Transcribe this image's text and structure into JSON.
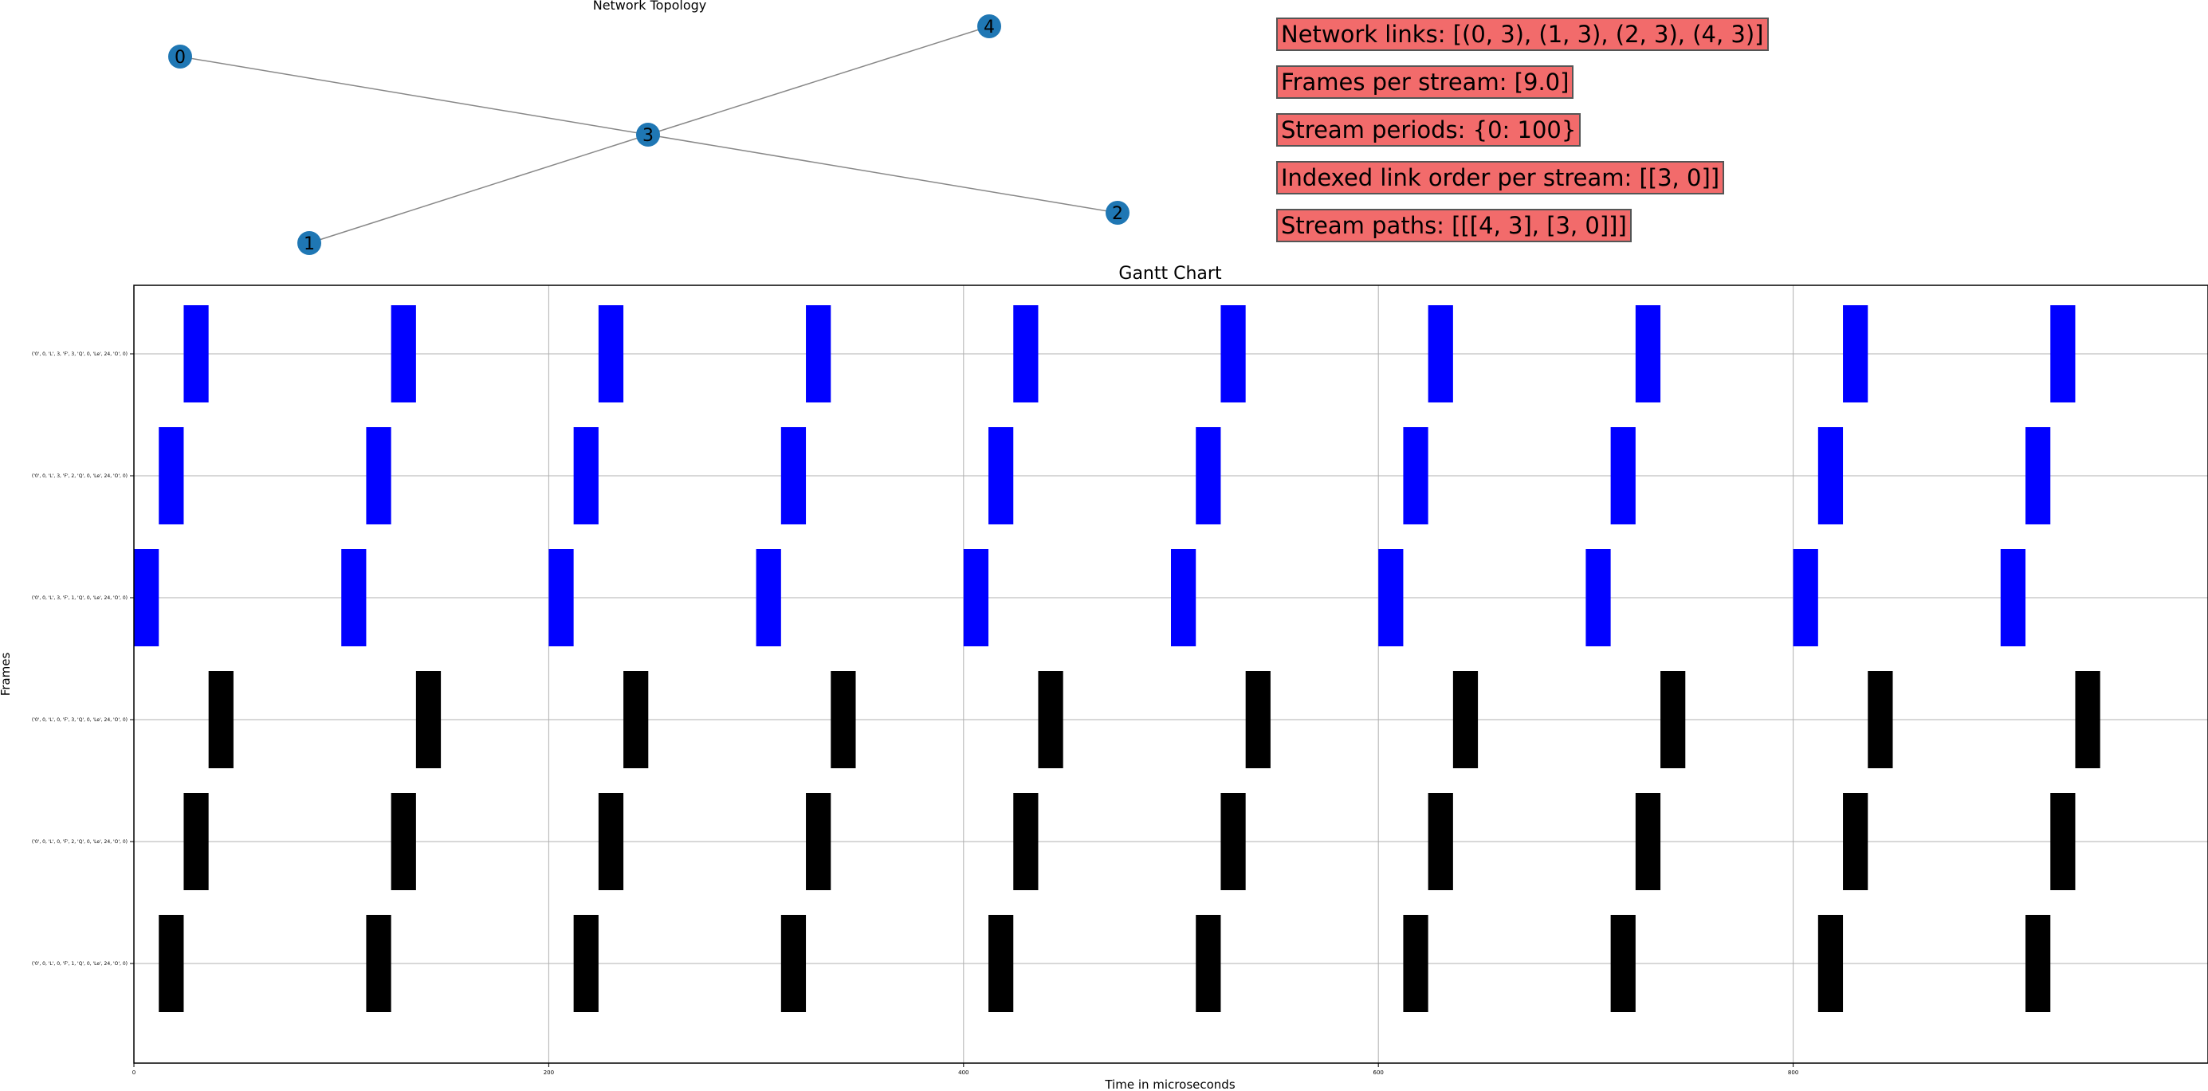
{
  "topology": {
    "title": "Network  Topology",
    "nodes": [
      "0",
      "1",
      "2",
      "3",
      "4"
    ],
    "edges": [
      [
        "0",
        "3"
      ],
      [
        "1",
        "3"
      ],
      [
        "2",
        "3"
      ],
      [
        "4",
        "3"
      ]
    ],
    "node_color": "#1f77b4",
    "edge_color": "#888888"
  },
  "info": {
    "network_links": "Network links: [(0, 3), (1, 3), (2, 3), (4, 3)]",
    "frames_per_stream": "Frames per stream: [9.0]",
    "stream_periods": "Stream periods: {0: 100}",
    "link_order": "Indexed link order per stream:  [[3, 0]]",
    "stream_paths": "Stream paths:  [[[4, 3], [3, 0]]]"
  },
  "chart_data": {
    "type": "gantt",
    "title": "Gantt Chart",
    "xlabel": "Time in microseconds",
    "ylabel": "Frames",
    "xlim": [
      0,
      1000
    ],
    "xticks": [
      0,
      200,
      400,
      600,
      800
    ],
    "period": 100,
    "repetitions": 10,
    "rows": [
      {
        "label": "('0', 0, 'L', 3, 'F', 3, 'Q', 0, 'Le', 24, 'O', 0)",
        "start": 24,
        "duration": 12,
        "color": "#0000ff"
      },
      {
        "label": "('0', 0, 'L', 3, 'F', 2, 'Q', 0, 'Le', 24, 'O', 0)",
        "start": 12,
        "duration": 12,
        "color": "#0000ff"
      },
      {
        "label": "('0', 0, 'L', 3, 'F', 1, 'Q', 0, 'Le', 24, 'O', 0)",
        "start": 0,
        "duration": 12,
        "color": "#0000ff"
      },
      {
        "label": "('0', 0, 'L', 0, 'F', 3, 'Q', 0, 'Le', 24, 'O', 0)",
        "start": 36,
        "duration": 12,
        "color": "#000000"
      },
      {
        "label": "('0', 0, 'L', 0, 'F', 2, 'Q', 0, 'Le', 24, 'O', 0)",
        "start": 24,
        "duration": 12,
        "color": "#000000"
      },
      {
        "label": "('0', 0, 'L', 0, 'F', 1, 'Q', 0, 'Le', 24, 'O', 0)",
        "start": 12,
        "duration": 12,
        "color": "#000000"
      }
    ]
  }
}
